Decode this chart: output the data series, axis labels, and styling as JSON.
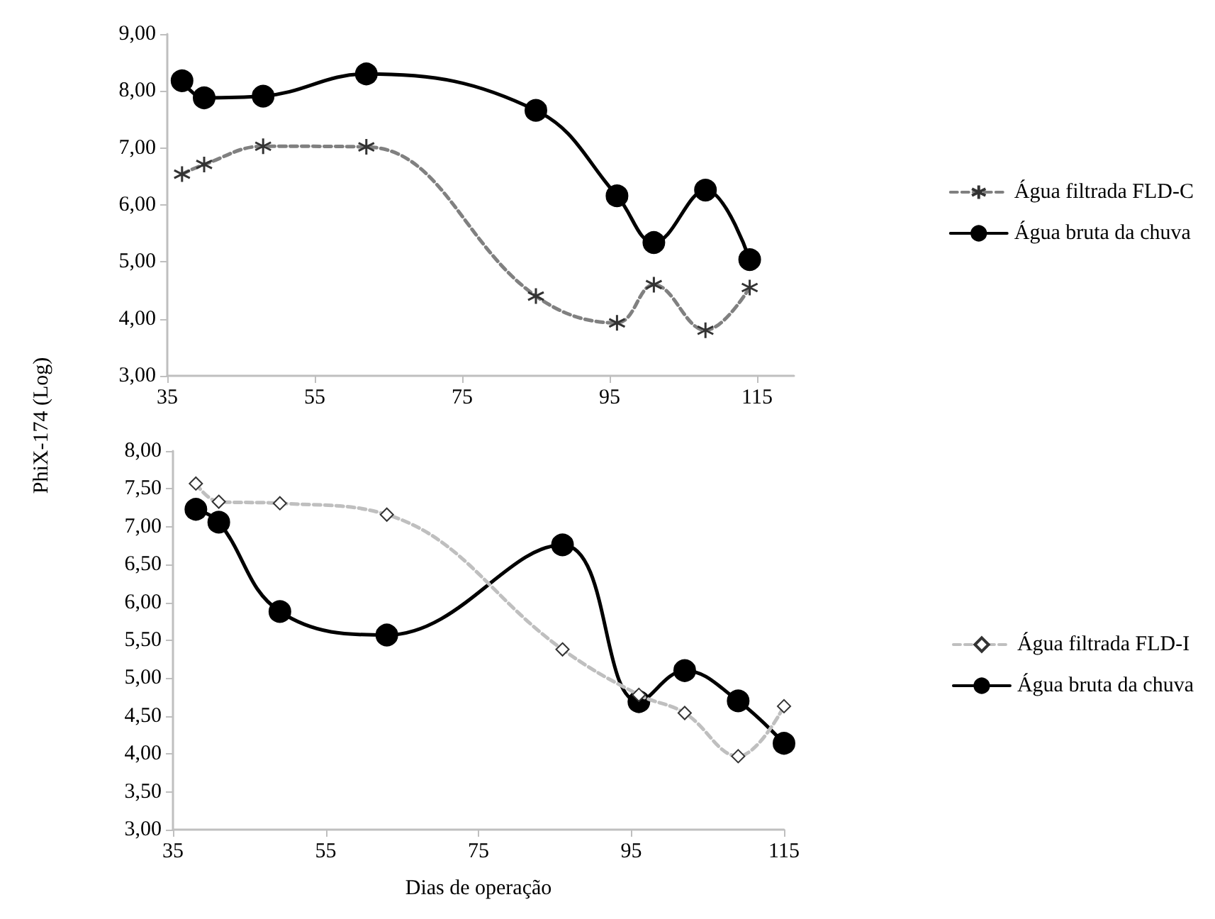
{
  "chart_data": [
    {
      "type": "line",
      "ylabel": "PhiX-174 (Log)",
      "xlim": [
        35,
        120
      ],
      "xticks": [
        35,
        55,
        75,
        95,
        115
      ],
      "ylim": [
        3,
        9
      ],
      "yticks": [
        {
          "value": 3,
          "label": "3,00"
        },
        {
          "value": 4,
          "label": "4,00"
        },
        {
          "value": 5,
          "label": "5,00"
        },
        {
          "value": 6,
          "label": "6,00"
        },
        {
          "value": 7,
          "label": "7,00"
        },
        {
          "value": 8,
          "label": "8,00"
        },
        {
          "value": 9,
          "label": "9,00"
        }
      ],
      "grid": false,
      "legend": "right",
      "series": [
        {
          "name": "Água filtrada FLD-C",
          "color": "#808080",
          "marker": "cross",
          "line_style": "dashed",
          "x": [
            37,
            40,
            48,
            62,
            85,
            96,
            101,
            108,
            114
          ],
          "values": [
            6.54,
            6.71,
            7.03,
            7.02,
            4.4,
            3.93,
            4.6,
            3.8,
            4.55
          ]
        },
        {
          "name": "Água bruta da chuva",
          "color": "#000000",
          "marker": "circle",
          "line_style": "solid",
          "x": [
            37,
            40,
            48,
            62,
            85,
            96,
            101,
            108,
            114
          ],
          "values": [
            8.18,
            7.88,
            7.91,
            8.3,
            7.66,
            6.16,
            5.34,
            6.26,
            5.04
          ]
        }
      ]
    },
    {
      "type": "line",
      "xlabel": "Dias de operação",
      "xlim": [
        35,
        115
      ],
      "xticks": [
        35,
        55,
        75,
        95,
        115
      ],
      "ylim": [
        3,
        8
      ],
      "yticks": [
        {
          "value": 3,
          "label": "3,00"
        },
        {
          "value": 3.5,
          "label": "3,50"
        },
        {
          "value": 4,
          "label": "4,00"
        },
        {
          "value": 4.5,
          "label": "4,50"
        },
        {
          "value": 5,
          "label": "5,00"
        },
        {
          "value": 5.5,
          "label": "5,50"
        },
        {
          "value": 6,
          "label": "6,00"
        },
        {
          "value": 6.5,
          "label": "6,50"
        },
        {
          "value": 7,
          "label": "7,00"
        },
        {
          "value": 7.5,
          "label": "7,50"
        },
        {
          "value": 8,
          "label": "8,00"
        }
      ],
      "grid": false,
      "legend": "right",
      "series": [
        {
          "name": "Água filtrada FLD-I",
          "color": "#bfbfbf",
          "marker": "diamond",
          "line_style": "dashed",
          "x": [
            38,
            41,
            49,
            63,
            86,
            96,
            102,
            109,
            115
          ],
          "values": [
            7.57,
            7.33,
            7.31,
            7.16,
            5.38,
            4.78,
            4.54,
            3.97,
            4.63
          ]
        },
        {
          "name": "Água bruta da chuva",
          "color": "#000000",
          "marker": "circle",
          "line_style": "solid",
          "x": [
            38,
            41,
            49,
            63,
            86,
            96,
            102,
            109,
            115
          ],
          "values": [
            7.23,
            7.06,
            5.88,
            5.57,
            6.76,
            4.69,
            5.1,
            4.7,
            4.14
          ]
        }
      ]
    }
  ]
}
